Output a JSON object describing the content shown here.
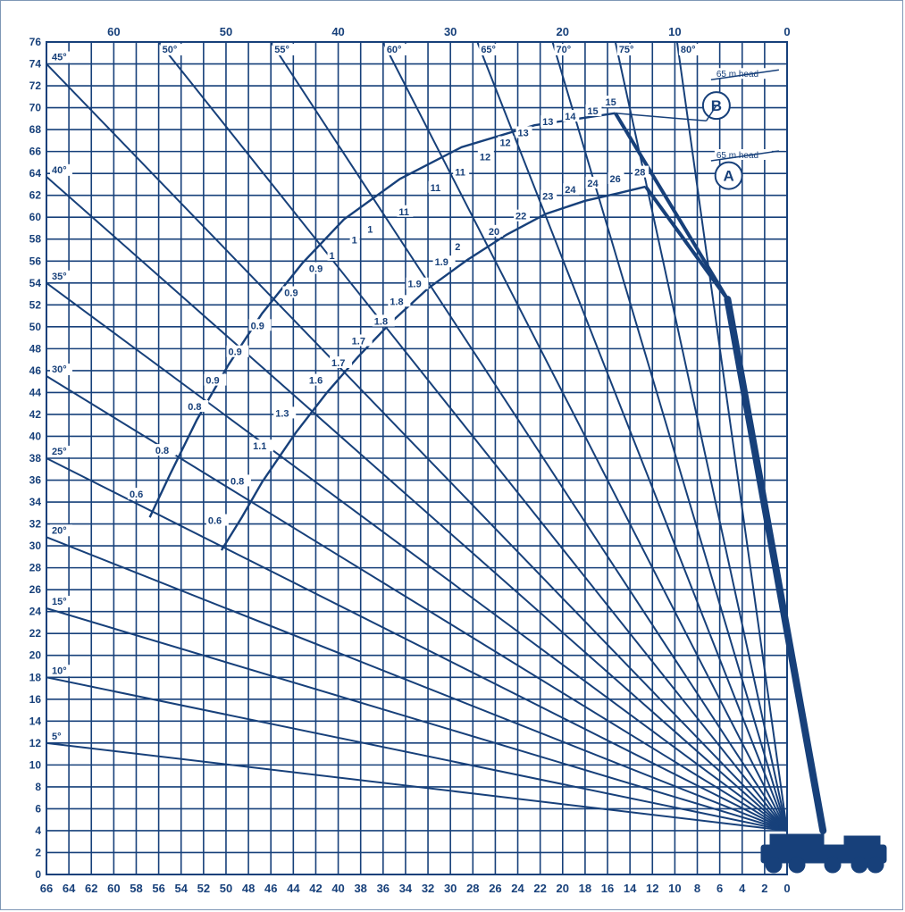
{
  "chart_data": {
    "type": "range-chart",
    "colors": {
      "ink": "#17407a",
      "background": "#ffffff",
      "border": "#7f97b6"
    },
    "x_axis_bottom": {
      "ticks": [
        66,
        64,
        62,
        60,
        58,
        56,
        54,
        52,
        50,
        48,
        46,
        44,
        42,
        40,
        38,
        36,
        34,
        32,
        30,
        28,
        26,
        24,
        22,
        20,
        18,
        16,
        14,
        12,
        10,
        8,
        6,
        4,
        2,
        0
      ],
      "range": [
        66,
        0
      ],
      "reversed": true
    },
    "x_axis_top": {
      "ticks": [
        60,
        50,
        40,
        30,
        20,
        10,
        0
      ]
    },
    "y_axis": {
      "ticks": [
        0,
        2,
        4,
        6,
        8,
        10,
        12,
        14,
        16,
        18,
        20,
        22,
        24,
        26,
        28,
        30,
        32,
        34,
        36,
        38,
        40,
        42,
        44,
        46,
        48,
        50,
        52,
        54,
        56,
        58,
        60,
        62,
        64,
        66,
        68,
        70,
        72,
        74,
        76
      ],
      "range": [
        0,
        76
      ]
    },
    "grid": true,
    "radial_lines": [
      {
        "label": "5°",
        "left_y": 12.0
      },
      {
        "label": "10°",
        "left_y": 18.0
      },
      {
        "label": "15°",
        "left_y": 24.3
      },
      {
        "label": "20°",
        "left_y": 30.8
      },
      {
        "label": "25°",
        "left_y": 38.0
      },
      {
        "label": "30°",
        "left_y": 45.5
      },
      {
        "label": "35°",
        "left_y": 54.0
      },
      {
        "label": "40°",
        "left_y": 63.7
      },
      {
        "label": "45°",
        "left_y": 74.0
      },
      {
        "label": "50°",
        "top_x": 56
      },
      {
        "label": "55°",
        "top_x": 46
      },
      {
        "label": "60°",
        "top_x": 36
      },
      {
        "label": "65°",
        "top_x": 27.6
      },
      {
        "label": "70°",
        "top_x": 20.9
      },
      {
        "label": "75°",
        "top_x": 15.3
      },
      {
        "label": "80°",
        "top_x": 9.8
      }
    ],
    "radial_origin": {
      "x": 0,
      "y": 4
    },
    "boom": {
      "base": [
        -3.2,
        4
      ],
      "tip": [
        5.3,
        52.5
      ]
    },
    "jib_B": {
      "label": "B",
      "tip": [
        15.3,
        69.5
      ],
      "points": [
        [
          15.3,
          69.5
        ],
        [
          22.5,
          68.4
        ],
        [
          29,
          66.4
        ],
        [
          34.5,
          63.5
        ],
        [
          39.5,
          59.8
        ],
        [
          43.2,
          55.8
        ],
        [
          46.8,
          51.2
        ],
        [
          49.8,
          46.5
        ],
        [
          52.6,
          41.5
        ],
        [
          55,
          36.5
        ],
        [
          56.8,
          32.6
        ]
      ],
      "loads": [
        {
          "text": "15",
          "x": 16.2,
          "y": 70.2
        },
        {
          "text": "15",
          "x": 17.8,
          "y": 69.4
        },
        {
          "text": "14",
          "x": 19.8,
          "y": 68.9
        },
        {
          "text": "13",
          "x": 21.8,
          "y": 68.4
        },
        {
          "text": "13",
          "x": 24,
          "y": 67.4
        },
        {
          "text": "12",
          "x": 25.6,
          "y": 66.5
        },
        {
          "text": "12",
          "x": 27.4,
          "y": 65.2
        },
        {
          "text": "11",
          "x": 29.6,
          "y": 63.8
        },
        {
          "text": "11",
          "x": 31.8,
          "y": 62.4
        },
        {
          "text": "11",
          "x": 34.6,
          "y": 60.2
        },
        {
          "text": "1",
          "x": 37.4,
          "y": 58.6
        },
        {
          "text": "1",
          "x": 38.8,
          "y": 57.6
        },
        {
          "text": "1",
          "x": 40.8,
          "y": 56.2
        },
        {
          "text": "0.9",
          "x": 42.6,
          "y": 55.0
        },
        {
          "text": "0.9",
          "x": 44.8,
          "y": 52.8
        },
        {
          "text": "0.9",
          "x": 47.8,
          "y": 49.8
        },
        {
          "text": "0.9",
          "x": 49.8,
          "y": 47.4
        },
        {
          "text": "0.9",
          "x": 51.8,
          "y": 44.8
        },
        {
          "text": "0.8",
          "x": 53.4,
          "y": 42.4
        },
        {
          "text": "0.8",
          "x": 56.3,
          "y": 38.4
        },
        {
          "text": "0.6",
          "x": 58.6,
          "y": 34.4
        }
      ]
    },
    "jib_A": {
      "label": "A",
      "tip": [
        12.6,
        62.8
      ],
      "points": [
        [
          12.6,
          62.8
        ],
        [
          15,
          62.2
        ],
        [
          18,
          61.5
        ],
        [
          21.5,
          60.3
        ],
        [
          25,
          58.4
        ],
        [
          28.5,
          56.1
        ],
        [
          32,
          53.5
        ],
        [
          35.2,
          50.5
        ],
        [
          38.2,
          47.3
        ],
        [
          41,
          44
        ],
        [
          43.8,
          40.3
        ],
        [
          46.8,
          35.8
        ],
        [
          48.6,
          32.6
        ],
        [
          50.4,
          29.6
        ]
      ],
      "loads": [
        {
          "text": "28",
          "x": 13.6,
          "y": 63.8
        },
        {
          "text": "26",
          "x": 15.8,
          "y": 63.2
        },
        {
          "text": "24",
          "x": 17.8,
          "y": 62.8
        },
        {
          "text": "24",
          "x": 19.8,
          "y": 62.2
        },
        {
          "text": "23",
          "x": 21.8,
          "y": 61.6
        },
        {
          "text": "22",
          "x": 24.2,
          "y": 59.8
        },
        {
          "text": "20",
          "x": 26.6,
          "y": 58.4
        },
        {
          "text": "2",
          "x": 29.6,
          "y": 57.0
        },
        {
          "text": "1.9",
          "x": 31.4,
          "y": 55.6
        },
        {
          "text": "1.9",
          "x": 33.8,
          "y": 53.6
        },
        {
          "text": "1.8",
          "x": 35.4,
          "y": 52.0
        },
        {
          "text": "1.8",
          "x": 36.8,
          "y": 50.2
        },
        {
          "text": "1.7",
          "x": 38.8,
          "y": 48.4
        },
        {
          "text": "1.7",
          "x": 40.6,
          "y": 46.4
        },
        {
          "text": "1.6",
          "x": 42.6,
          "y": 44.8
        },
        {
          "text": "1.3",
          "x": 45.6,
          "y": 41.8
        },
        {
          "text": "1.1",
          "x": 47.6,
          "y": 38.8
        },
        {
          "text": "0.8",
          "x": 49.6,
          "y": 35.6
        },
        {
          "text": "0.6",
          "x": 51.6,
          "y": 32.0
        }
      ]
    },
    "annotations": [
      {
        "text": "65 m head",
        "x": 6.3,
        "y": 72.8
      },
      {
        "text": "65 m head",
        "x": 6.3,
        "y": 65.4
      }
    ]
  }
}
